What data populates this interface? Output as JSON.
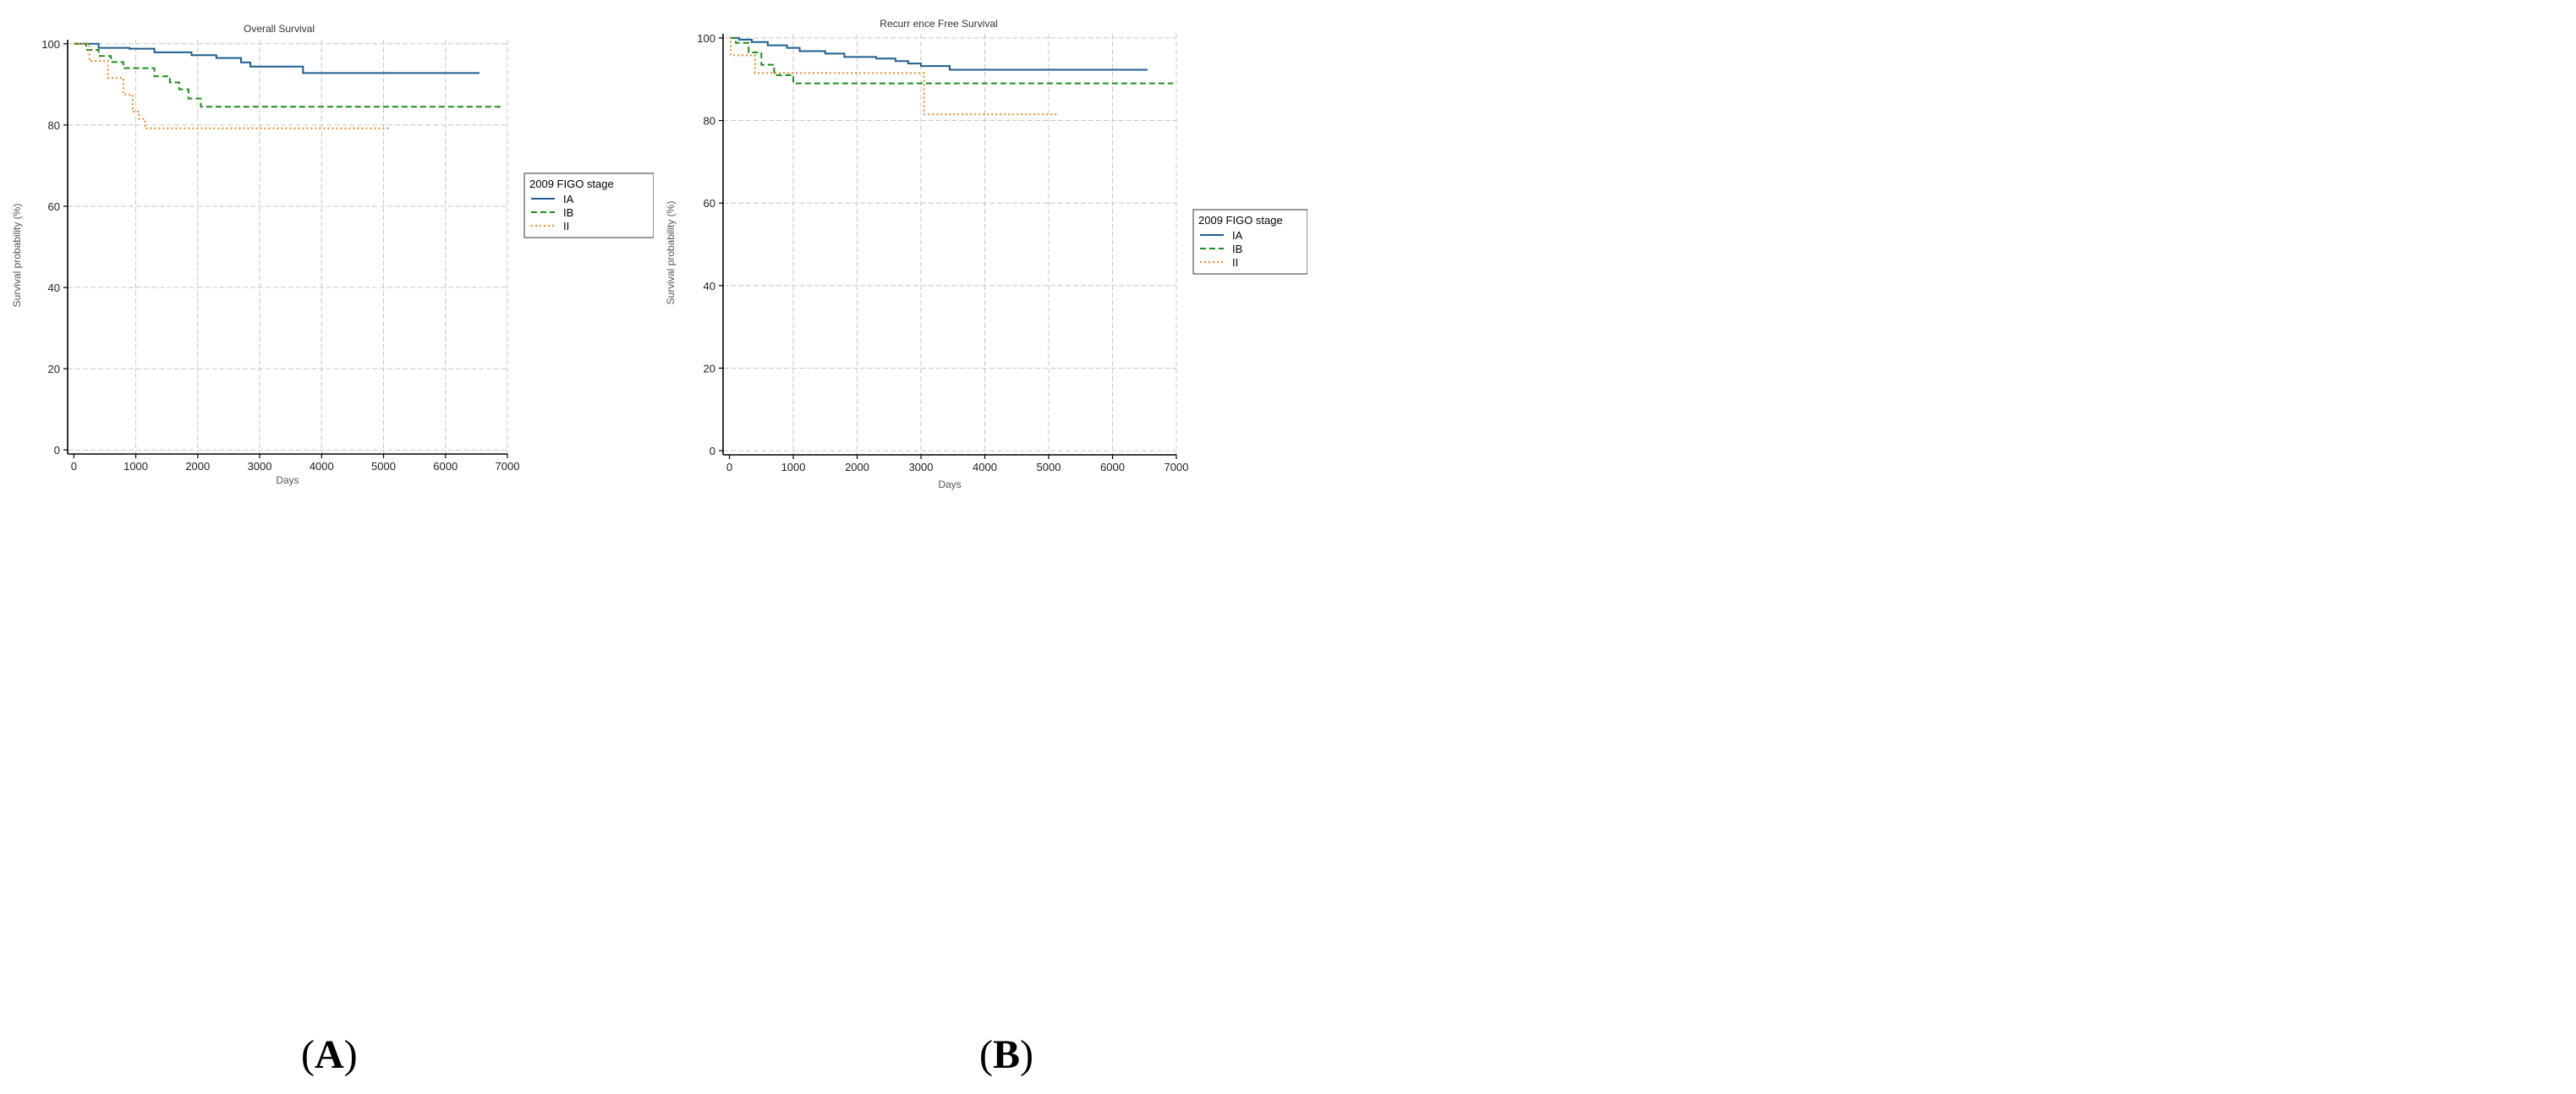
{
  "chart_data": [
    {
      "type": "line",
      "panel": "A",
      "title": "Overall Survival",
      "xlabel": "Days",
      "ylabel": "Survival probability (%)",
      "xlim": [
        -100,
        7000
      ],
      "ylim": [
        -1,
        101
      ],
      "xticks": [
        0,
        1000,
        2000,
        3000,
        4000,
        5000,
        6000,
        7000
      ],
      "yticks": [
        0,
        20,
        40,
        60,
        80,
        100
      ],
      "grid": true,
      "legend_title": "2009 FIGO stage",
      "legend_position": "right",
      "series": [
        {
          "name": "IA",
          "color": "#1f5e8e",
          "style": "solid",
          "x": [
            0,
            400,
            900,
            1300,
            1900,
            2300,
            2700,
            2850,
            3700,
            6550
          ],
          "y": [
            100,
            99,
            98.8,
            97.9,
            97.2,
            96.5,
            95.4,
            94.4,
            92.8,
            92.8
          ]
        },
        {
          "name": "IB",
          "color": "#1e8c1e",
          "style": "dashed",
          "x": [
            0,
            200,
            400,
            600,
            800,
            1300,
            1550,
            1700,
            1850,
            2050,
            6900
          ],
          "y": [
            100,
            98.5,
            97,
            95.5,
            94,
            92,
            90.5,
            88.8,
            86.5,
            84.5,
            84.5
          ]
        },
        {
          "name": "II",
          "color": "#e68a2e",
          "style": "dotted",
          "x": [
            0,
            250,
            550,
            800,
            950,
            1050,
            1150,
            5100
          ],
          "y": [
            100,
            95.8,
            91.6,
            87.5,
            83.3,
            81.5,
            79.2,
            79.2
          ]
        }
      ]
    },
    {
      "type": "line",
      "panel": "B",
      "title": "Recurr ence Free Survival",
      "xlabel": "Days",
      "ylabel": "Survival probability (%)",
      "xlim": [
        -100,
        7000
      ],
      "ylim": [
        -1,
        101
      ],
      "xticks": [
        0,
        1000,
        2000,
        3000,
        4000,
        5000,
        6000,
        7000
      ],
      "yticks": [
        0,
        20,
        40,
        60,
        80,
        100
      ],
      "grid": true,
      "legend_title": "2009 FIGO stage",
      "legend_position": "right",
      "series": [
        {
          "name": "IA",
          "color": "#1f5e8e",
          "style": "solid",
          "x": [
            0,
            150,
            350,
            600,
            900,
            1100,
            1500,
            1800,
            2300,
            2600,
            2800,
            3000,
            3450,
            6550
          ],
          "y": [
            100,
            99.6,
            99,
            98.2,
            97.6,
            96.8,
            96.2,
            95.4,
            95,
            94.4,
            93.8,
            93.2,
            92.3,
            92.3
          ]
        },
        {
          "name": "IB",
          "color": "#1e8c1e",
          "style": "dashed",
          "x": [
            0,
            100,
            300,
            500,
            700,
            1000,
            6950
          ],
          "y": [
            100,
            98.8,
            96.5,
            93.5,
            91,
            89,
            89
          ]
        },
        {
          "name": "II",
          "color": "#e68a2e",
          "style": "dotted",
          "x": [
            0,
            20,
            400,
            3050,
            5130
          ],
          "y": [
            100,
            95.8,
            91.5,
            81.5,
            81.5
          ]
        }
      ]
    }
  ],
  "panel_labels": {
    "a": "A",
    "b": "B"
  }
}
